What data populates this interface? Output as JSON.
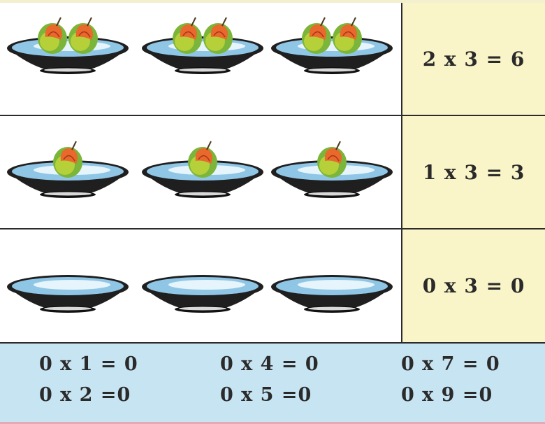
{
  "rows": [
    {
      "equation": "2 x 3 = 6",
      "plates": 3,
      "fruits_per_plate": 2
    },
    {
      "equation": "1 x 3 = 3",
      "plates": 3,
      "fruits_per_plate": 1
    },
    {
      "equation": "0 x 3 = 0",
      "plates": 3,
      "fruits_per_plate": 0
    }
  ],
  "facts": [
    [
      "0 x 1 = 0",
      "0 x 2 =0"
    ],
    [
      "0 x 4 = 0",
      "0 x 5 =0"
    ],
    [
      "0 x 7 = 0",
      "0 x 9 =0"
    ]
  ],
  "colors": {
    "panel_yellow": "#faf5c9",
    "panel_blue": "#c7e4f2",
    "plate_rim": "#1f1f1f",
    "plate_inner": "#8fc6e6"
  }
}
